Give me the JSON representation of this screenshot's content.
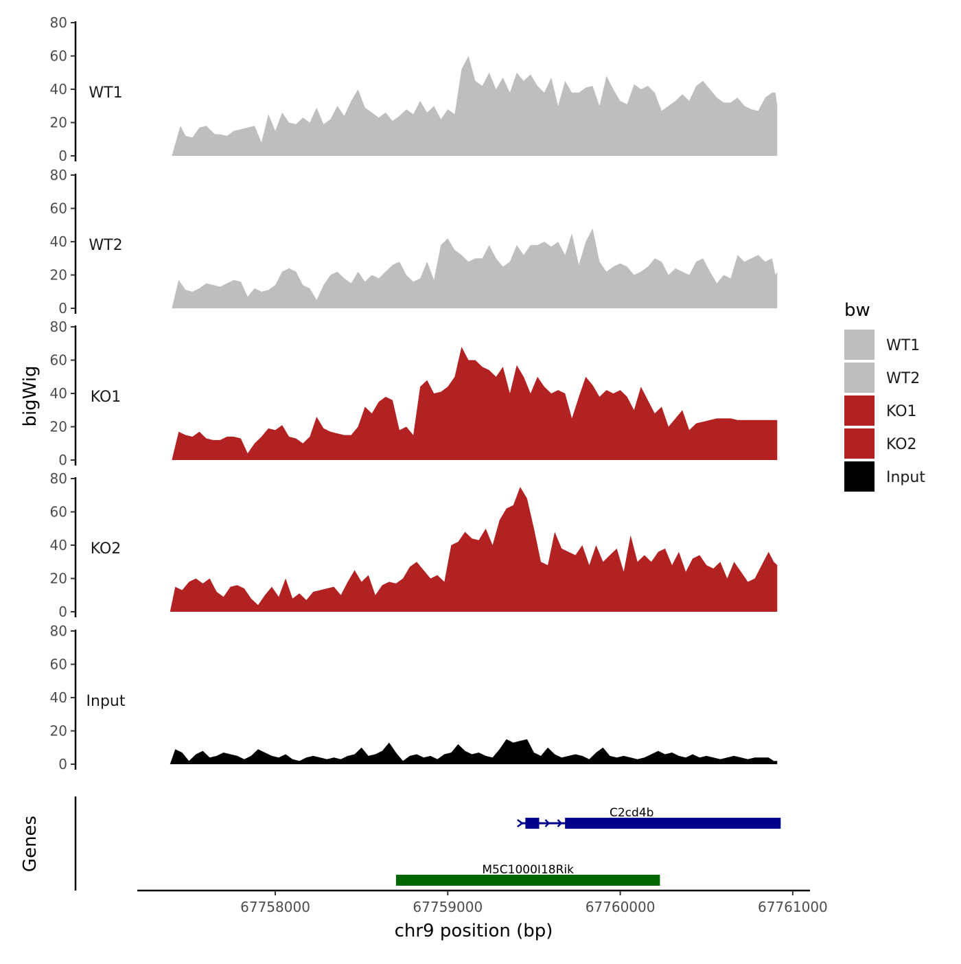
{
  "chart_data": {
    "type": "area",
    "ylabel": "bigWig",
    "xlabel": "chr9 position (bp)",
    "genes_label": "Genes",
    "xlim": [
      67757200,
      67761100
    ],
    "x_ticks": [
      67758000,
      67759000,
      67760000,
      67761000
    ],
    "x_tick_labels": [
      "67758000",
      "67759000",
      "67760000",
      "67761000"
    ],
    "ylim": [
      0,
      80
    ],
    "y_ticks": [
      0,
      20,
      40,
      60,
      80
    ],
    "y_tick_labels": [
      "0",
      "20",
      "40",
      "60",
      "80"
    ],
    "grid": false,
    "legend": {
      "title": "bw",
      "placement": "right",
      "entries": [
        {
          "label": "WT1",
          "color": "#bebebe"
        },
        {
          "label": "WT2",
          "color": "#bebebe"
        },
        {
          "label": "KO1",
          "color": "#b22222"
        },
        {
          "label": "KO2",
          "color": "#b22222"
        },
        {
          "label": "Input",
          "color": "#000000"
        }
      ]
    },
    "tracks": [
      {
        "name": "WT1",
        "color": "#bebebe",
        "x": [
          67757400,
          67757450,
          67757480,
          67757520,
          67757560,
          67757600,
          67757650,
          67757680,
          67757720,
          67757760,
          67757800,
          67757840,
          67757880,
          67757920,
          67757960,
          67758000,
          67758040,
          67758080,
          67758120,
          67758160,
          67758200,
          67758240,
          67758280,
          67758320,
          67758360,
          67758400,
          67758440,
          67758480,
          67758520,
          67758560,
          67758600,
          67758640,
          67758680,
          67758720,
          67758760,
          67758800,
          67758840,
          67758880,
          67758920,
          67758960,
          67759000,
          67759040,
          67759080,
          67759120,
          67759160,
          67759200,
          67759240,
          67759280,
          67759320,
          67759360,
          67759400,
          67759440,
          67759480,
          67759520,
          67759560,
          67759600,
          67759640,
          67759680,
          67759720,
          67759760,
          67759800,
          67759840,
          67759880,
          67759920,
          67759960,
          67760000,
          67760040,
          67760080,
          67760120,
          67760160,
          67760200,
          67760240,
          67760280,
          67760320,
          67760360,
          67760400,
          67760440,
          67760480,
          67760520,
          67760560,
          67760600,
          67760640,
          67760680,
          67760720,
          67760760,
          67760800,
          67760840,
          67760880,
          67760900,
          67760910,
          67760910
        ],
        "y": [
          0,
          18,
          12,
          11,
          17,
          18,
          13,
          13,
          12,
          15,
          16,
          17,
          18,
          8,
          25,
          15,
          26,
          20,
          19,
          23,
          20,
          29,
          19,
          22,
          30,
          24,
          33,
          40,
          29,
          26,
          23,
          26,
          21,
          24,
          28,
          25,
          33,
          26,
          30,
          22,
          28,
          25,
          52,
          60,
          45,
          42,
          50,
          40,
          47,
          38,
          50,
          45,
          49,
          42,
          38,
          47,
          30,
          45,
          38,
          38,
          41,
          42,
          30,
          48,
          40,
          33,
          31,
          43,
          40,
          42,
          38,
          27,
          30,
          33,
          37,
          33,
          42,
          45,
          40,
          35,
          32,
          32,
          35,
          30,
          28,
          27,
          35,
          38,
          38,
          30,
          0
        ]
      },
      {
        "name": "WT2",
        "color": "#bebebe",
        "x": [
          67757400,
          67757440,
          67757480,
          67757520,
          67757560,
          67757600,
          67757640,
          67757680,
          67757720,
          67757760,
          67757800,
          67757840,
          67757880,
          67757920,
          67757960,
          67758000,
          67758040,
          67758080,
          67758120,
          67758160,
          67758200,
          67758240,
          67758280,
          67758320,
          67758360,
          67758400,
          67758440,
          67758480,
          67758520,
          67758560,
          67758600,
          67758640,
          67758680,
          67758720,
          67758760,
          67758800,
          67758840,
          67758880,
          67758920,
          67758960,
          67759000,
          67759040,
          67759080,
          67759120,
          67759160,
          67759200,
          67759240,
          67759280,
          67759320,
          67759360,
          67759400,
          67759440,
          67759480,
          67759520,
          67759560,
          67759600,
          67759640,
          67759680,
          67759720,
          67759760,
          67759800,
          67759840,
          67759880,
          67759920,
          67759960,
          67760000,
          67760040,
          67760080,
          67760120,
          67760160,
          67760200,
          67760240,
          67760280,
          67760320,
          67760360,
          67760400,
          67760440,
          67760480,
          67760520,
          67760560,
          67760600,
          67760640,
          67760680,
          67760720,
          67760760,
          67760800,
          67760840,
          67760880,
          67760900,
          67760910,
          67760910
        ],
        "y": [
          0,
          17,
          11,
          10,
          12,
          15,
          14,
          13,
          15,
          17,
          16,
          7,
          12,
          10,
          11,
          14,
          22,
          24,
          22,
          14,
          12,
          5,
          14,
          20,
          22,
          18,
          15,
          22,
          16,
          20,
          18,
          22,
          26,
          28,
          20,
          16,
          18,
          28,
          17,
          38,
          42,
          35,
          32,
          28,
          30,
          30,
          38,
          30,
          25,
          28,
          38,
          32,
          38,
          38,
          40,
          37,
          40,
          32,
          45,
          26,
          40,
          48,
          28,
          22,
          25,
          27,
          25,
          20,
          22,
          25,
          30,
          28,
          20,
          24,
          22,
          20,
          28,
          30,
          22,
          15,
          20,
          18,
          32,
          28,
          30,
          32,
          28,
          30,
          20,
          22,
          0
        ]
      },
      {
        "name": "KO1",
        "color": "#b22222",
        "x": [
          67757400,
          67757440,
          67757480,
          67757520,
          67757560,
          67757600,
          67757640,
          67757680,
          67757720,
          67757760,
          67757800,
          67757840,
          67757880,
          67757920,
          67757960,
          67758000,
          67758040,
          67758080,
          67758120,
          67758160,
          67758200,
          67758240,
          67758280,
          67758320,
          67758360,
          67758400,
          67758440,
          67758480,
          67758520,
          67758560,
          67758600,
          67758640,
          67758680,
          67758720,
          67758760,
          67758800,
          67758840,
          67758880,
          67758920,
          67758960,
          67759000,
          67759040,
          67759080,
          67759120,
          67759160,
          67759200,
          67759240,
          67759280,
          67759320,
          67759360,
          67759400,
          67759440,
          67759480,
          67759520,
          67759560,
          67759600,
          67759640,
          67759680,
          67759720,
          67759760,
          67759800,
          67759840,
          67759880,
          67759920,
          67759960,
          67760000,
          67760040,
          67760080,
          67760120,
          67760160,
          67760200,
          67760240,
          67760280,
          67760320,
          67760360,
          67760400,
          67760440,
          67760480,
          67760520,
          67760560,
          67760600,
          67760640,
          67760680,
          67760720,
          67760760,
          67760800,
          67760840,
          67760880,
          67760900,
          67760910,
          67760910
        ],
        "y": [
          0,
          17,
          15,
          14,
          17,
          13,
          12,
          12,
          14,
          14,
          13,
          4,
          10,
          14,
          19,
          18,
          21,
          14,
          13,
          10,
          14,
          26,
          19,
          17,
          16,
          15,
          15,
          20,
          32,
          28,
          35,
          38,
          36,
          18,
          20,
          15,
          44,
          48,
          40,
          41,
          44,
          50,
          68,
          60,
          60,
          56,
          54,
          50,
          56,
          40,
          57,
          50,
          40,
          50,
          44,
          40,
          42,
          40,
          25,
          38,
          50,
          45,
          38,
          42,
          40,
          42,
          38,
          30,
          44,
          36,
          28,
          32,
          20,
          25,
          30,
          18,
          22,
          23,
          24,
          25,
          25,
          25,
          24,
          24,
          24,
          24,
          24,
          24,
          24,
          24,
          0
        ]
      },
      {
        "name": "KO2",
        "color": "#b22222",
        "x": [
          67757390,
          67757420,
          67757460,
          67757500,
          67757540,
          67757580,
          67757620,
          67757660,
          67757700,
          67757740,
          67757780,
          67757820,
          67757860,
          67757900,
          67757940,
          67757980,
          67758020,
          67758060,
          67758100,
          67758140,
          67758180,
          67758220,
          67758260,
          67758300,
          67758340,
          67758380,
          67758420,
          67758460,
          67758500,
          67758540,
          67758580,
          67758620,
          67758660,
          67758700,
          67758740,
          67758780,
          67758820,
          67758860,
          67758900,
          67758940,
          67758980,
          67759020,
          67759060,
          67759100,
          67759140,
          67759180,
          67759220,
          67759260,
          67759300,
          67759340,
          67759380,
          67759420,
          67759460,
          67759500,
          67759540,
          67759580,
          67759620,
          67759660,
          67759700,
          67759740,
          67759780,
          67759820,
          67759860,
          67759900,
          67759940,
          67759980,
          67760020,
          67760060,
          67760100,
          67760140,
          67760180,
          67760220,
          67760260,
          67760300,
          67760340,
          67760380,
          67760420,
          67760460,
          67760500,
          67760540,
          67760580,
          67760620,
          67760660,
          67760700,
          67760740,
          67760780,
          67760820,
          67760860,
          67760890,
          67760910,
          67760910
        ],
        "y": [
          0,
          15,
          13,
          18,
          20,
          17,
          20,
          12,
          9,
          15,
          16,
          14,
          8,
          4,
          10,
          15,
          9,
          20,
          8,
          11,
          7,
          12,
          13,
          14,
          15,
          10,
          18,
          25,
          18,
          22,
          10,
          16,
          18,
          17,
          20,
          27,
          30,
          25,
          20,
          22,
          18,
          40,
          42,
          48,
          44,
          43,
          50,
          40,
          55,
          62,
          64,
          75,
          68,
          50,
          30,
          28,
          48,
          38,
          36,
          34,
          40,
          28,
          40,
          30,
          34,
          38,
          24,
          46,
          30,
          34,
          30,
          36,
          38,
          28,
          36,
          24,
          32,
          34,
          28,
          26,
          30,
          20,
          30,
          24,
          18,
          20,
          28,
          36,
          30,
          28,
          0
        ]
      },
      {
        "name": "Input",
        "color": "#000000",
        "x": [
          67757390,
          67757420,
          67757460,
          67757500,
          67757540,
          67757580,
          67757620,
          67757660,
          67757700,
          67757740,
          67757780,
          67757820,
          67757860,
          67757900,
          67757940,
          67757980,
          67758020,
          67758060,
          67758100,
          67758140,
          67758180,
          67758220,
          67758260,
          67758300,
          67758340,
          67758380,
          67758420,
          67758460,
          67758500,
          67758540,
          67758580,
          67758620,
          67758660,
          67758700,
          67758740,
          67758780,
          67758820,
          67758860,
          67758900,
          67758940,
          67758980,
          67759020,
          67759060,
          67759100,
          67759140,
          67759180,
          67759220,
          67759260,
          67759300,
          67759340,
          67759380,
          67759420,
          67759460,
          67759500,
          67759540,
          67759580,
          67759620,
          67759660,
          67759700,
          67759740,
          67759780,
          67759820,
          67759860,
          67759900,
          67759940,
          67759980,
          67760020,
          67760060,
          67760100,
          67760140,
          67760180,
          67760220,
          67760260,
          67760300,
          67760340,
          67760380,
          67760420,
          67760460,
          67760500,
          67760540,
          67760580,
          67760620,
          67760660,
          67760700,
          67760740,
          67760780,
          67760820,
          67760860,
          67760890,
          67760910,
          67760910
        ],
        "y": [
          0,
          9,
          7,
          2,
          6,
          8,
          4,
          5,
          7,
          6,
          5,
          3,
          5,
          9,
          7,
          5,
          4,
          6,
          3,
          2,
          4,
          5,
          4,
          3,
          4,
          3,
          5,
          6,
          10,
          5,
          6,
          8,
          13,
          7,
          2,
          5,
          6,
          4,
          5,
          3,
          6,
          7,
          12,
          8,
          6,
          7,
          5,
          4,
          9,
          15,
          13,
          14,
          15,
          7,
          5,
          10,
          6,
          4,
          5,
          6,
          5,
          3,
          7,
          10,
          5,
          4,
          5,
          4,
          3,
          4,
          6,
          8,
          6,
          7,
          5,
          4,
          6,
          4,
          5,
          4,
          3,
          4,
          5,
          4,
          3,
          4,
          4,
          4,
          2,
          2,
          0
        ]
      }
    ],
    "genes": [
      {
        "name": "C2cd4b",
        "start": 67759420,
        "end": 67760930,
        "strand": "+",
        "color": "#00008b",
        "row": 1,
        "exons": [
          [
            67759450,
            67759530
          ],
          [
            67759680,
            67760930
          ]
        ]
      },
      {
        "name": "M5C1000I18Rik",
        "start": 67758700,
        "end": 67760230,
        "strand": "+",
        "color": "#006400",
        "row": 2,
        "exons": [
          [
            67758700,
            67760230
          ]
        ]
      }
    ]
  }
}
